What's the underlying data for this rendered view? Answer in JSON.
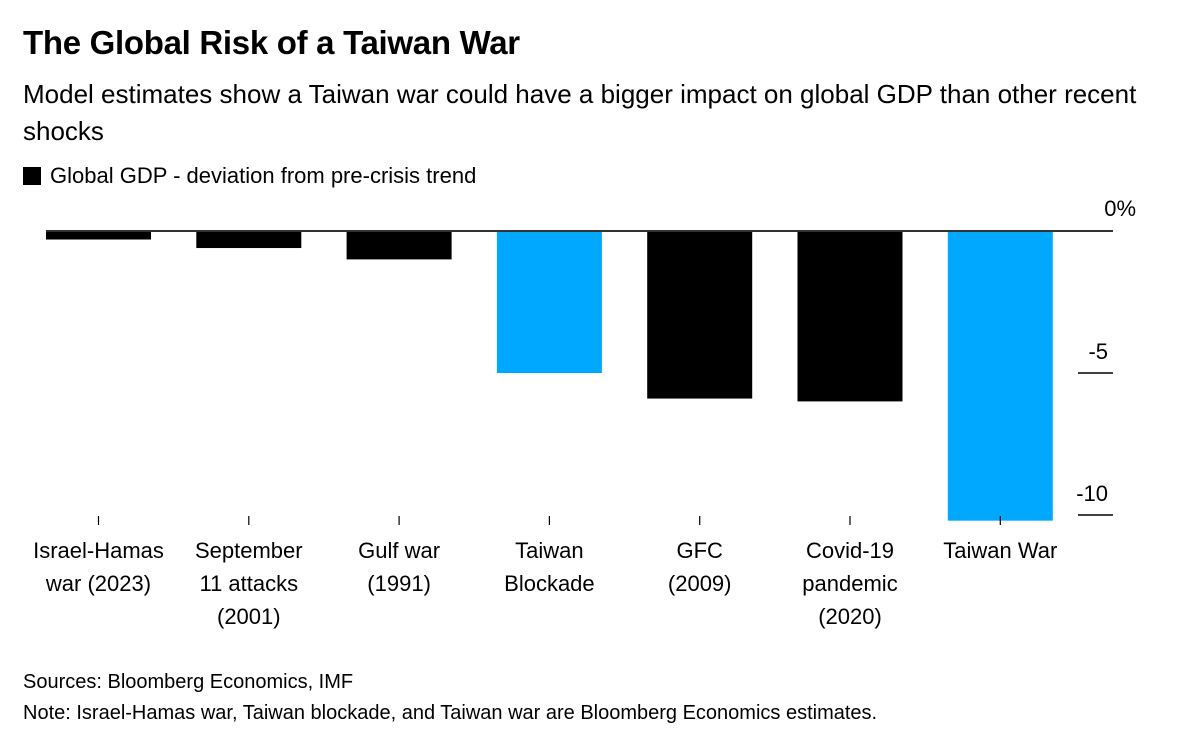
{
  "header": {
    "title": "The Global Risk of a Taiwan War",
    "subtitle": "Model estimates show a Taiwan war could have a bigger impact on global GDP than other recent shocks"
  },
  "legend": {
    "label": "Global GDP - deviation from pre-crisis trend",
    "color": "#000000"
  },
  "footer": {
    "sources": "Sources: Bloomberg Economics, IMF",
    "note": "Note: Israel-Hamas war, Taiwan blockade, and Taiwan war are Bloomberg Economics estimates."
  },
  "chart_data": {
    "type": "bar",
    "title": "The Global Risk of a Taiwan War",
    "subtitle": "Model estimates show a Taiwan war could have a bigger impact on global GDP than other recent shocks",
    "xlabel": "",
    "ylabel": "",
    "ylim": [
      -10.3,
      0
    ],
    "yticks": [
      0,
      -5,
      -10
    ],
    "ytick_labels": [
      "0%",
      "-5",
      "-10"
    ],
    "y_axis_position": "right",
    "grid": false,
    "legend": {
      "entries": [
        "Global GDP - deviation from pre-crisis trend"
      ],
      "placement": "top-left"
    },
    "categories": [
      [
        "Israel-Hamas",
        "war (2023)"
      ],
      [
        "September",
        "11 attacks",
        "(2001)"
      ],
      [
        "Gulf war",
        "(1991)"
      ],
      [
        "Taiwan",
        "Blockade"
      ],
      [
        "GFC",
        "(2009)"
      ],
      [
        "Covid-19",
        "pandemic",
        "(2020)"
      ],
      [
        "Taiwan War"
      ]
    ],
    "series": [
      {
        "name": "Global GDP - deviation from pre-crisis trend",
        "values": [
          -0.3,
          -0.6,
          -1.0,
          -5.0,
          -5.9,
          -6.0,
          -10.2
        ]
      }
    ],
    "bar_colors": [
      "#000000",
      "#000000",
      "#000000",
      "#00a8ff",
      "#000000",
      "#000000",
      "#00a8ff"
    ],
    "highlight_color": "#00a8ff",
    "base_color": "#000000"
  }
}
